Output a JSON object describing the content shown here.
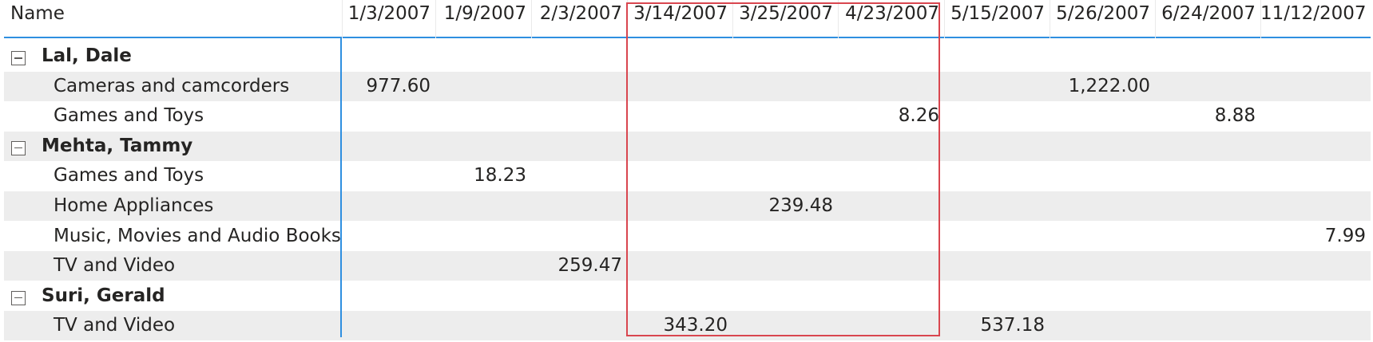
{
  "header": {
    "name_label": "Name",
    "dates": [
      "1/3/2007",
      "1/9/2007",
      "2/3/2007",
      "3/14/2007",
      "3/25/2007",
      "4/23/2007",
      "5/15/2007",
      "5/26/2007",
      "6/24/2007",
      "11/12/2007"
    ]
  },
  "groups": [
    {
      "name": "Lal, Dale",
      "items": [
        {
          "label": "Cameras and camcorders",
          "values": [
            "977.60",
            "",
            "",
            "",
            "",
            "",
            "",
            "1,222.00",
            "",
            ""
          ]
        },
        {
          "label": "Games and Toys",
          "values": [
            "",
            "",
            "",
            "",
            "",
            "8.26",
            "",
            "",
            "8.88",
            ""
          ]
        }
      ]
    },
    {
      "name": "Mehta, Tammy",
      "items": [
        {
          "label": "Games and Toys",
          "values": [
            "",
            "18.23",
            "",
            "",
            "",
            "",
            "",
            "",
            "",
            ""
          ]
        },
        {
          "label": "Home Appliances",
          "values": [
            "",
            "",
            "",
            "",
            "239.48",
            "",
            "",
            "",
            "",
            ""
          ]
        },
        {
          "label": "Music, Movies and Audio Books",
          "values": [
            "",
            "",
            "",
            "",
            "",
            "",
            "",
            "",
            "",
            "7.99"
          ]
        },
        {
          "label": "TV and Video",
          "values": [
            "",
            "",
            "259.47",
            "",
            "",
            "",
            "",
            "",
            "",
            ""
          ]
        }
      ]
    },
    {
      "name": "Suri, Gerald",
      "items": [
        {
          "label": "TV and Video",
          "values": [
            "",
            "",
            "",
            "343.20",
            "",
            "",
            "537.18",
            "",
            "",
            ""
          ]
        }
      ]
    }
  ],
  "colors": {
    "accent": "#2f8fe0",
    "highlight": "#d9464f",
    "row_shade": "#ededed"
  }
}
